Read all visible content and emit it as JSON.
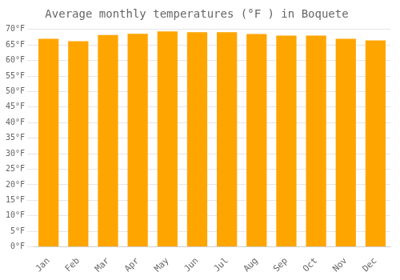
{
  "chart_data": {
    "type": "bar",
    "title": "Average monthly temperatures (°F ) in Boquete",
    "categories": [
      "Jan",
      "Feb",
      "Mar",
      "Apr",
      "May",
      "Jun",
      "Jul",
      "Aug",
      "Sep",
      "Oct",
      "Nov",
      "Dec"
    ],
    "values": [
      67.0,
      66.2,
      68.2,
      68.6,
      69.4,
      69.1,
      69.1,
      68.5,
      68.0,
      68.0,
      67.0,
      66.5
    ],
    "color": "#FFA500",
    "ylim": [
      0,
      70
    ],
    "yticks": [
      {
        "value": 0,
        "label": "0°F"
      },
      {
        "value": 5,
        "label": "5°F"
      },
      {
        "value": 10,
        "label": "10°F"
      },
      {
        "value": 15,
        "label": "15°F"
      },
      {
        "value": 20,
        "label": "20°F"
      },
      {
        "value": 25,
        "label": "25°F"
      },
      {
        "value": 30,
        "label": "30°F"
      },
      {
        "value": 35,
        "label": "35°F"
      },
      {
        "value": 40,
        "label": "40°F"
      },
      {
        "value": 45,
        "label": "45°F"
      },
      {
        "value": 50,
        "label": "50°F"
      },
      {
        "value": 55,
        "label": "55°F"
      },
      {
        "value": 60,
        "label": "60°F"
      },
      {
        "value": 65,
        "label": "65°F"
      },
      {
        "value": 70,
        "label": "70°F"
      }
    ],
    "grid": true
  }
}
